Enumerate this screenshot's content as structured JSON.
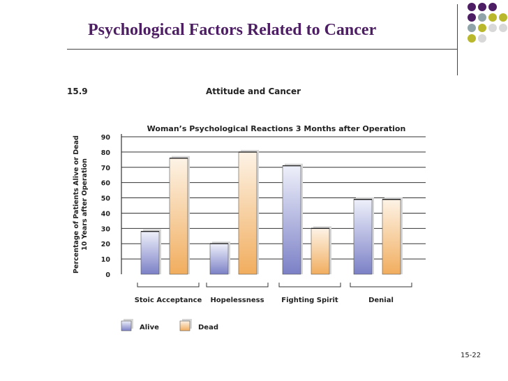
{
  "slide": {
    "title": "Psychological Factors Related to Cancer",
    "number": "15-22"
  },
  "figure": {
    "number": "15.9",
    "title": "Attitude and Cancer"
  },
  "decor": {
    "dot_colors": [
      "#4d1e63",
      "#8fa3a8",
      "#b9b82c",
      "#d8d8d8"
    ],
    "title_color": "#4d1e63"
  },
  "chart_data": {
    "type": "bar",
    "title": "Woman’s Psychological Reactions 3 Months after Operation",
    "ylabel_line1": "Percentage of Patients Alive or Dead",
    "ylabel_line2": "10 Years after Operation",
    "categories": [
      "Stoic Acceptance",
      "Hopelessness",
      "Fighting Spirit",
      "Denial"
    ],
    "series": [
      {
        "name": "Alive",
        "color": "#8a8fcf",
        "values": [
          28,
          20,
          71,
          49
        ]
      },
      {
        "name": "Dead",
        "color": "#f2b46b",
        "values": [
          76,
          80,
          30,
          49
        ]
      }
    ],
    "ylim": [
      0,
      90
    ],
    "yticks": [
      0,
      10,
      20,
      30,
      40,
      50,
      60,
      70,
      80,
      90
    ],
    "grid": true,
    "legend_position": "bottom-left"
  }
}
